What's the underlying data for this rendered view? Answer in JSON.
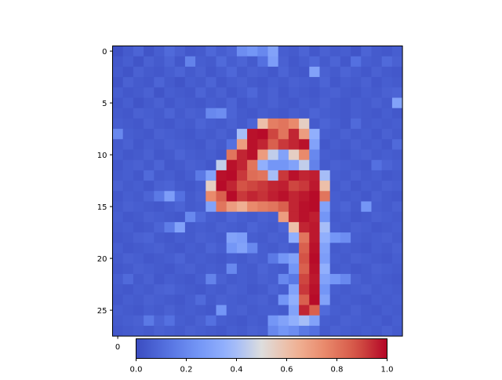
{
  "chart_data": {
    "type": "heatmap",
    "title": "",
    "xlabel": "",
    "ylabel": "",
    "rows": 28,
    "cols": 28,
    "colormap": "coolwarm",
    "vmin": 0,
    "vmax": 1,
    "y_ticks": [
      0,
      5,
      10,
      15,
      20,
      25
    ],
    "x_ticks": [
      0
    ],
    "colorbar": {
      "location": "bottom",
      "ticks": [
        0.0,
        0.2,
        0.4,
        0.6,
        0.8,
        1.0
      ],
      "tick_labels": [
        "0.0",
        "0.2",
        "0.4",
        "0.6",
        "0.8",
        "1.0"
      ]
    },
    "values": [
      [
        0.02,
        0.05,
        0.08,
        0.03,
        0.06,
        0.1,
        0.07,
        0.04,
        0.05,
        0.09,
        0.06,
        0.08,
        0.22,
        0.25,
        0.2,
        0.3,
        0.06,
        0.05,
        0.08,
        0.04,
        0.07,
        0.05,
        0.06,
        0.03,
        0.08,
        0.05,
        0.04,
        0.06
      ],
      [
        0.04,
        0.06,
        0.03,
        0.07,
        0.05,
        0.08,
        0.04,
        0.18,
        0.06,
        0.05,
        0.1,
        0.06,
        0.08,
        0.05,
        0.12,
        0.28,
        0.07,
        0.04,
        0.06,
        0.09,
        0.05,
        0.08,
        0.04,
        0.12,
        0.06,
        0.05,
        0.1,
        0.07
      ],
      [
        0.05,
        0.03,
        0.07,
        0.05,
        0.04,
        0.06,
        0.08,
        0.05,
        0.07,
        0.04,
        0.06,
        0.09,
        0.05,
        0.07,
        0.06,
        0.04,
        0.08,
        0.05,
        0.04,
        0.3,
        0.07,
        0.05,
        0.08,
        0.06,
        0.04,
        0.07,
        0.05,
        0.04
      ],
      [
        0.03,
        0.07,
        0.05,
        0.04,
        0.08,
        0.05,
        0.03,
        0.06,
        0.05,
        0.08,
        0.04,
        0.06,
        0.07,
        0.05,
        0.04,
        0.06,
        0.05,
        0.07,
        0.06,
        0.05,
        0.08,
        0.04,
        0.06,
        0.05,
        0.07,
        0.04,
        0.06,
        0.05
      ],
      [
        0.06,
        0.04,
        0.05,
        0.07,
        0.03,
        0.06,
        0.05,
        0.04,
        0.08,
        0.05,
        0.07,
        0.04,
        0.06,
        0.09,
        0.05,
        0.07,
        0.04,
        0.06,
        0.05,
        0.04,
        0.06,
        0.07,
        0.05,
        0.04,
        0.06,
        0.05,
        0.07,
        0.08
      ],
      [
        0.04,
        0.06,
        0.03,
        0.05,
        0.07,
        0.04,
        0.06,
        0.05,
        0.04,
        0.06,
        0.05,
        0.08,
        0.04,
        0.06,
        0.05,
        0.07,
        0.05,
        0.04,
        0.06,
        0.05,
        0.07,
        0.05,
        0.04,
        0.06,
        0.05,
        0.07,
        0.05,
        0.3
      ],
      [
        0.05,
        0.04,
        0.07,
        0.06,
        0.05,
        0.08,
        0.05,
        0.07,
        0.06,
        0.2,
        0.22,
        0.08,
        0.05,
        0.04,
        0.06,
        0.05,
        0.04,
        0.06,
        0.05,
        0.08,
        0.06,
        0.05,
        0.04,
        0.06,
        0.05,
        0.04,
        0.06,
        0.04
      ],
      [
        0.06,
        0.05,
        0.04,
        0.07,
        0.05,
        0.04,
        0.06,
        0.05,
        0.08,
        0.06,
        0.05,
        0.07,
        0.05,
        0.08,
        0.6,
        0.78,
        0.8,
        0.75,
        0.55,
        0.05,
        0.08,
        0.06,
        0.04,
        0.1,
        0.05,
        0.06,
        0.05,
        0.06
      ],
      [
        0.2,
        0.06,
        0.05,
        0.04,
        0.07,
        0.06,
        0.05,
        0.04,
        0.06,
        0.05,
        0.07,
        0.05,
        0.4,
        0.98,
        0.99,
        0.9,
        0.8,
        0.95,
        0.7,
        0.35,
        0.06,
        0.05,
        0.07,
        0.05,
        0.06,
        0.04,
        0.07,
        0.05
      ],
      [
        0.05,
        0.07,
        0.04,
        0.06,
        0.05,
        0.07,
        0.06,
        0.05,
        0.04,
        0.07,
        0.05,
        0.12,
        0.7,
        0.98,
        0.95,
        0.85,
        0.92,
        0.95,
        0.98,
        0.3,
        0.04,
        0.06,
        0.05,
        0.07,
        0.05,
        0.06,
        0.04,
        0.1
      ],
      [
        0.06,
        0.04,
        0.05,
        0.07,
        0.04,
        0.05,
        0.08,
        0.06,
        0.05,
        0.06,
        0.04,
        0.8,
        0.95,
        0.98,
        0.7,
        0.45,
        0.3,
        0.55,
        0.75,
        0.2,
        0.06,
        0.05,
        0.04,
        0.06,
        0.07,
        0.05,
        0.06,
        0.05
      ],
      [
        0.04,
        0.06,
        0.07,
        0.05,
        0.08,
        0.04,
        0.05,
        0.07,
        0.06,
        0.04,
        0.45,
        0.98,
        0.95,
        0.8,
        0.35,
        0.25,
        0.25,
        0.3,
        0.45,
        0.18,
        0.05,
        0.07,
        0.06,
        0.05,
        0.04,
        0.12,
        0.08,
        0.06
      ],
      [
        0.05,
        0.06,
        0.04,
        0.1,
        0.05,
        0.06,
        0.04,
        0.06,
        0.15,
        0.3,
        0.98,
        0.99,
        0.92,
        0.82,
        0.8,
        0.4,
        0.92,
        0.98,
        0.95,
        0.96,
        0.4,
        0.06,
        0.05,
        0.07,
        0.05,
        0.06,
        0.04,
        0.05
      ],
      [
        0.07,
        0.05,
        0.06,
        0.04,
        0.07,
        0.08,
        0.05,
        0.04,
        0.06,
        0.55,
        0.99,
        0.95,
        0.88,
        0.9,
        0.92,
        0.95,
        0.96,
        0.9,
        0.92,
        0.97,
        0.6,
        0.05,
        0.07,
        0.04,
        0.06,
        0.05,
        0.07,
        0.06
      ],
      [
        0.04,
        0.06,
        0.05,
        0.08,
        0.15,
        0.28,
        0.12,
        0.05,
        0.07,
        0.75,
        0.85,
        0.99,
        0.92,
        0.95,
        0.93,
        0.96,
        0.98,
        0.95,
        0.97,
        0.99,
        0.8,
        0.06,
        0.05,
        0.06,
        0.04,
        0.07,
        0.05,
        0.04
      ],
      [
        0.05,
        0.07,
        0.06,
        0.05,
        0.04,
        0.06,
        0.08,
        0.05,
        0.06,
        0.3,
        0.8,
        0.7,
        0.65,
        0.75,
        0.78,
        0.8,
        0.85,
        0.95,
        0.98,
        0.99,
        0.3,
        0.06,
        0.08,
        0.05,
        0.25,
        0.06,
        0.05,
        0.07
      ],
      [
        0.06,
        0.04,
        0.05,
        0.07,
        0.06,
        0.05,
        0.04,
        0.2,
        0.1,
        0.06,
        0.05,
        0.08,
        0.06,
        0.05,
        0.07,
        0.06,
        0.7,
        0.95,
        0.98,
        0.96,
        0.25,
        0.05,
        0.06,
        0.04,
        0.05,
        0.07,
        0.06,
        0.05
      ],
      [
        0.05,
        0.06,
        0.04,
        0.05,
        0.08,
        0.16,
        0.3,
        0.05,
        0.06,
        0.05,
        0.07,
        0.06,
        0.05,
        0.08,
        0.06,
        0.05,
        0.08,
        0.6,
        0.95,
        0.97,
        0.4,
        0.06,
        0.05,
        0.07,
        0.06,
        0.04,
        0.05,
        0.06
      ],
      [
        0.04,
        0.05,
        0.07,
        0.08,
        0.05,
        0.04,
        0.06,
        0.05,
        0.07,
        0.06,
        0.05,
        0.3,
        0.28,
        0.06,
        0.05,
        0.07,
        0.06,
        0.35,
        0.8,
        0.97,
        0.35,
        0.25,
        0.22,
        0.06,
        0.05,
        0.06,
        0.07,
        0.05
      ],
      [
        0.06,
        0.04,
        0.05,
        0.06,
        0.07,
        0.05,
        0.04,
        0.06,
        0.05,
        0.08,
        0.06,
        0.25,
        0.3,
        0.2,
        0.06,
        0.05,
        0.07,
        0.05,
        0.85,
        0.98,
        0.3,
        0.05,
        0.06,
        0.05,
        0.04,
        0.06,
        0.05,
        0.07
      ],
      [
        0.05,
        0.07,
        0.06,
        0.04,
        0.05,
        0.06,
        0.08,
        0.05,
        0.06,
        0.05,
        0.04,
        0.06,
        0.05,
        0.07,
        0.06,
        0.15,
        0.25,
        0.3,
        0.88,
        0.99,
        0.28,
        0.06,
        0.05,
        0.07,
        0.06,
        0.05,
        0.04,
        0.06
      ],
      [
        0.04,
        0.05,
        0.07,
        0.06,
        0.05,
        0.04,
        0.06,
        0.07,
        0.05,
        0.06,
        0.05,
        0.2,
        0.06,
        0.05,
        0.08,
        0.06,
        0.05,
        0.25,
        0.85,
        0.98,
        0.35,
        0.05,
        0.06,
        0.04,
        0.05,
        0.07,
        0.06,
        0.05
      ],
      [
        0.06,
        0.1,
        0.05,
        0.07,
        0.04,
        0.06,
        0.05,
        0.04,
        0.06,
        0.18,
        0.07,
        0.05,
        0.06,
        0.05,
        0.07,
        0.06,
        0.2,
        0.15,
        0.9,
        0.97,
        0.3,
        0.25,
        0.2,
        0.07,
        0.05,
        0.06,
        0.05,
        0.04
      ],
      [
        0.05,
        0.04,
        0.06,
        0.05,
        0.07,
        0.08,
        0.06,
        0.05,
        0.04,
        0.06,
        0.05,
        0.07,
        0.06,
        0.04,
        0.05,
        0.08,
        0.06,
        0.3,
        0.92,
        0.98,
        0.25,
        0.06,
        0.05,
        0.06,
        0.07,
        0.05,
        0.06,
        0.05
      ],
      [
        0.04,
        0.06,
        0.05,
        0.07,
        0.06,
        0.05,
        0.04,
        0.06,
        0.1,
        0.05,
        0.07,
        0.06,
        0.05,
        0.06,
        0.07,
        0.05,
        0.25,
        0.35,
        0.85,
        0.99,
        0.3,
        0.05,
        0.06,
        0.05,
        0.04,
        0.06,
        0.05,
        0.06
      ],
      [
        0.06,
        0.05,
        0.04,
        0.06,
        0.05,
        0.07,
        0.05,
        0.06,
        0.05,
        0.04,
        0.25,
        0.06,
        0.07,
        0.05,
        0.06,
        0.06,
        0.05,
        0.3,
        0.95,
        0.85,
        0.1,
        0.06,
        0.05,
        0.07,
        0.05,
        0.04,
        0.06,
        0.05
      ],
      [
        0.05,
        0.06,
        0.07,
        0.15,
        0.08,
        0.12,
        0.06,
        0.05,
        0.07,
        0.12,
        0.06,
        0.05,
        0.04,
        0.06,
        0.05,
        0.25,
        0.3,
        0.35,
        0.4,
        0.3,
        0.06,
        0.05,
        0.07,
        0.06,
        0.05,
        0.06,
        0.04,
        0.06
      ],
      [
        0.04,
        0.05,
        0.06,
        0.05,
        0.07,
        0.06,
        0.05,
        0.07,
        0.06,
        0.05,
        0.04,
        0.06,
        0.05,
        0.07,
        0.06,
        0.2,
        0.25,
        0.22,
        0.15,
        0.12,
        0.05,
        0.07,
        0.06,
        0.05,
        0.06,
        0.05,
        0.07,
        0.05
      ]
    ]
  }
}
